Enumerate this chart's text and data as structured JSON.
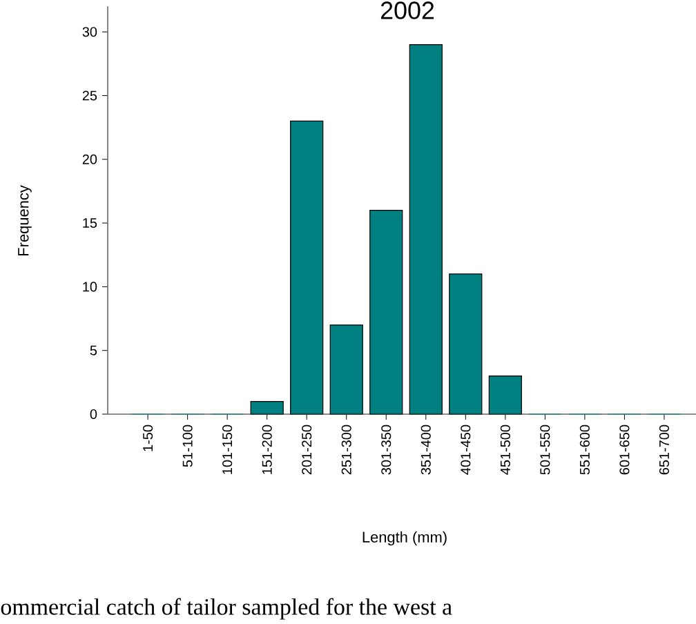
{
  "chart_data": {
    "type": "bar",
    "title": "2002",
    "xlabel": "Length (mm)",
    "ylabel": "Frequency",
    "categories": [
      "1-50",
      "51-100",
      "101-150",
      "151-200",
      "201-250",
      "251-300",
      "301-350",
      "351-400",
      "401-450",
      "451-500",
      "501-550",
      "551-600",
      "601-650",
      "651-700"
    ],
    "values": [
      0,
      0,
      0,
      1,
      23,
      7,
      16,
      29,
      11,
      3,
      0,
      0,
      0,
      0
    ],
    "color": "#008080",
    "ylim": [
      0,
      32
    ],
    "yticks": [
      0,
      5,
      10,
      15,
      20,
      25,
      30
    ],
    "annotations": [
      "ommercial catch of tailor sampled for the west a"
    ]
  }
}
